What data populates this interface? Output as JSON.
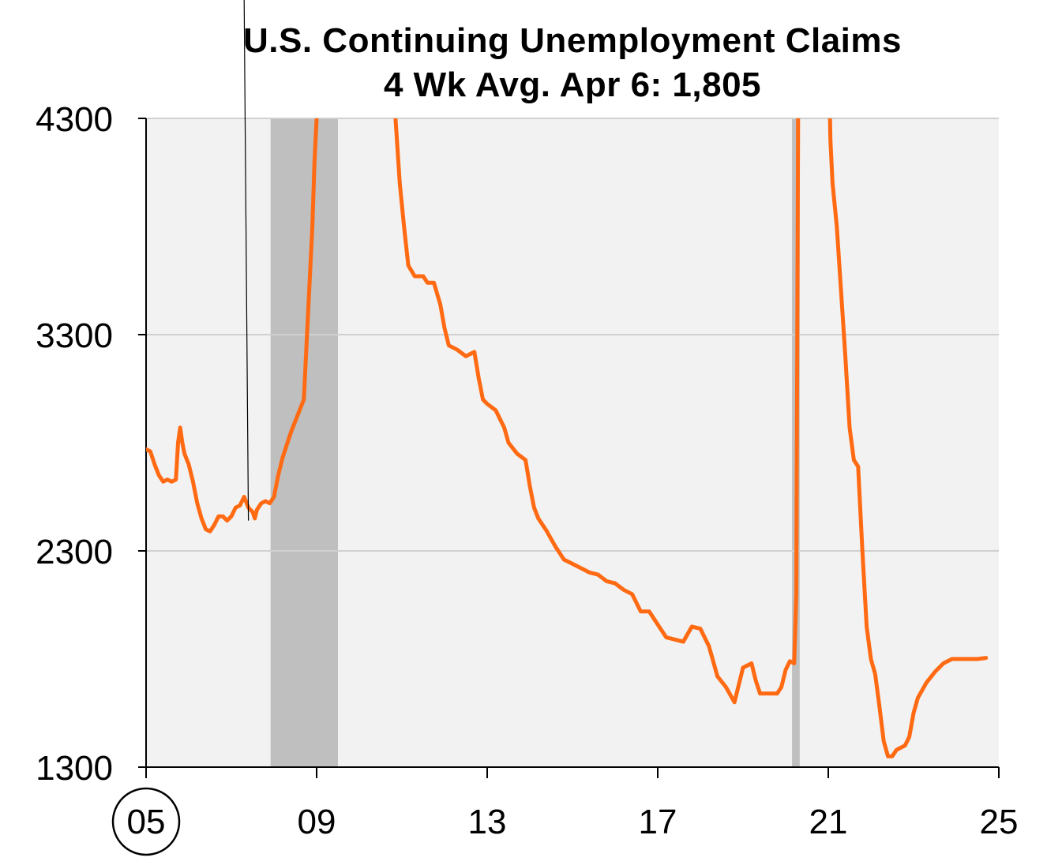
{
  "chart_data": {
    "type": "line",
    "title": "U.S. Continuing Unemployment Claims",
    "subtitle": "4 Wk Avg. Apr 6: 1,805",
    "xlabel": "",
    "ylabel": "",
    "xlim": [
      2005,
      2025
    ],
    "ylim": [
      1300,
      4300
    ],
    "y_ticks": [
      "4300",
      "3300",
      "2300",
      "1300"
    ],
    "y_tick_values": [
      4300,
      3300,
      2300,
      1300
    ],
    "x_ticks": [
      "05",
      "09",
      "13",
      "17",
      "21",
      "25"
    ],
    "x_tick_values": [
      2005,
      2009,
      2013,
      2017,
      2021,
      2025
    ],
    "x_tick_circled": "05",
    "grid": "horizontal",
    "plot_background": "#f2f2f2",
    "line_color": "#ff6a13",
    "recession_color": "#bfbfbf",
    "recessions": [
      {
        "start": 2007.92,
        "end": 2009.5
      },
      {
        "start": 2020.15,
        "end": 2020.33
      }
    ],
    "annotation_line": {
      "from": [
        2007.3,
        4850
      ],
      "to": [
        2007.4,
        2440
      ]
    },
    "series": [
      {
        "values": [
          [
            2005.0,
            2770
          ],
          [
            2005.1,
            2760
          ],
          [
            2005.2,
            2700
          ],
          [
            2005.3,
            2650
          ],
          [
            2005.4,
            2620
          ],
          [
            2005.5,
            2630
          ],
          [
            2005.6,
            2620
          ],
          [
            2005.7,
            2630
          ],
          [
            2005.75,
            2800
          ],
          [
            2005.8,
            2870
          ],
          [
            2005.85,
            2800
          ],
          [
            2005.9,
            2750
          ],
          [
            2006.0,
            2700
          ],
          [
            2006.1,
            2620
          ],
          [
            2006.2,
            2520
          ],
          [
            2006.3,
            2450
          ],
          [
            2006.4,
            2400
          ],
          [
            2006.5,
            2390
          ],
          [
            2006.6,
            2420
          ],
          [
            2006.7,
            2460
          ],
          [
            2006.8,
            2460
          ],
          [
            2006.9,
            2440
          ],
          [
            2007.0,
            2460
          ],
          [
            2007.1,
            2500
          ],
          [
            2007.2,
            2510
          ],
          [
            2007.3,
            2550
          ],
          [
            2007.4,
            2500
          ],
          [
            2007.5,
            2480
          ],
          [
            2007.55,
            2450
          ],
          [
            2007.6,
            2490
          ],
          [
            2007.7,
            2520
          ],
          [
            2007.8,
            2530
          ],
          [
            2007.9,
            2520
          ],
          [
            2008.0,
            2550
          ],
          [
            2008.1,
            2650
          ],
          [
            2008.2,
            2730
          ],
          [
            2008.3,
            2790
          ],
          [
            2008.4,
            2850
          ],
          [
            2008.5,
            2900
          ],
          [
            2008.6,
            2950
          ],
          [
            2008.7,
            3000
          ],
          [
            2008.75,
            3200
          ],
          [
            2008.8,
            3400
          ],
          [
            2008.85,
            3600
          ],
          [
            2008.9,
            3800
          ],
          [
            2008.95,
            4100
          ],
          [
            2009.0,
            4300
          ],
          [
            2009.05,
            4700
          ]
        ]
      },
      {
        "values": [
          [
            2010.8,
            4700
          ],
          [
            2010.85,
            4300
          ],
          [
            2010.95,
            4000
          ],
          [
            2011.05,
            3800
          ],
          [
            2011.15,
            3620
          ],
          [
            2011.3,
            3570
          ],
          [
            2011.5,
            3570
          ],
          [
            2011.6,
            3540
          ],
          [
            2011.75,
            3540
          ],
          [
            2011.9,
            3440
          ],
          [
            2012.0,
            3330
          ],
          [
            2012.1,
            3250
          ],
          [
            2012.3,
            3230
          ],
          [
            2012.5,
            3200
          ],
          [
            2012.7,
            3220
          ],
          [
            2012.8,
            3100
          ],
          [
            2012.9,
            3000
          ],
          [
            2013.0,
            2980
          ],
          [
            2013.2,
            2950
          ],
          [
            2013.4,
            2870
          ],
          [
            2013.5,
            2800
          ],
          [
            2013.7,
            2750
          ],
          [
            2013.9,
            2720
          ],
          [
            2014.0,
            2600
          ],
          [
            2014.1,
            2500
          ],
          [
            2014.2,
            2450
          ],
          [
            2014.4,
            2390
          ],
          [
            2014.6,
            2320
          ],
          [
            2014.8,
            2260
          ],
          [
            2015.0,
            2240
          ],
          [
            2015.2,
            2220
          ],
          [
            2015.4,
            2200
          ],
          [
            2015.6,
            2190
          ],
          [
            2015.8,
            2160
          ],
          [
            2016.0,
            2150
          ],
          [
            2016.2,
            2120
          ],
          [
            2016.4,
            2100
          ],
          [
            2016.6,
            2020
          ],
          [
            2016.8,
            2020
          ],
          [
            2017.0,
            1960
          ],
          [
            2017.2,
            1900
          ],
          [
            2017.4,
            1890
          ],
          [
            2017.6,
            1880
          ],
          [
            2017.8,
            1950
          ],
          [
            2018.0,
            1940
          ],
          [
            2018.2,
            1860
          ],
          [
            2018.4,
            1720
          ],
          [
            2018.6,
            1670
          ],
          [
            2018.8,
            1600
          ],
          [
            2018.9,
            1680
          ],
          [
            2019.0,
            1760
          ],
          [
            2019.2,
            1780
          ],
          [
            2019.3,
            1700
          ],
          [
            2019.4,
            1640
          ],
          [
            2019.6,
            1640
          ],
          [
            2019.8,
            1640
          ],
          [
            2019.9,
            1670
          ],
          [
            2020.0,
            1750
          ],
          [
            2020.1,
            1790
          ],
          [
            2020.2,
            1780
          ],
          [
            2020.25,
            2100
          ],
          [
            2020.3,
            4700
          ]
        ]
      },
      {
        "values": [
          [
            2021.0,
            4700
          ],
          [
            2021.05,
            4200
          ],
          [
            2021.1,
            4000
          ],
          [
            2021.2,
            3800
          ],
          [
            2021.3,
            3500
          ],
          [
            2021.4,
            3200
          ],
          [
            2021.5,
            2870
          ],
          [
            2021.6,
            2720
          ],
          [
            2021.7,
            2690
          ],
          [
            2021.8,
            2300
          ],
          [
            2021.9,
            1950
          ],
          [
            2022.0,
            1800
          ],
          [
            2022.1,
            1730
          ],
          [
            2022.2,
            1580
          ],
          [
            2022.3,
            1420
          ],
          [
            2022.4,
            1350
          ],
          [
            2022.5,
            1350
          ],
          [
            2022.6,
            1380
          ],
          [
            2022.8,
            1400
          ],
          [
            2022.9,
            1440
          ],
          [
            2023.0,
            1550
          ],
          [
            2023.1,
            1620
          ],
          [
            2023.3,
            1690
          ],
          [
            2023.5,
            1740
          ],
          [
            2023.7,
            1780
          ],
          [
            2023.9,
            1800
          ],
          [
            2024.1,
            1800
          ],
          [
            2024.3,
            1800
          ],
          [
            2024.5,
            1800
          ],
          [
            2024.7,
            1805
          ]
        ]
      }
    ]
  }
}
